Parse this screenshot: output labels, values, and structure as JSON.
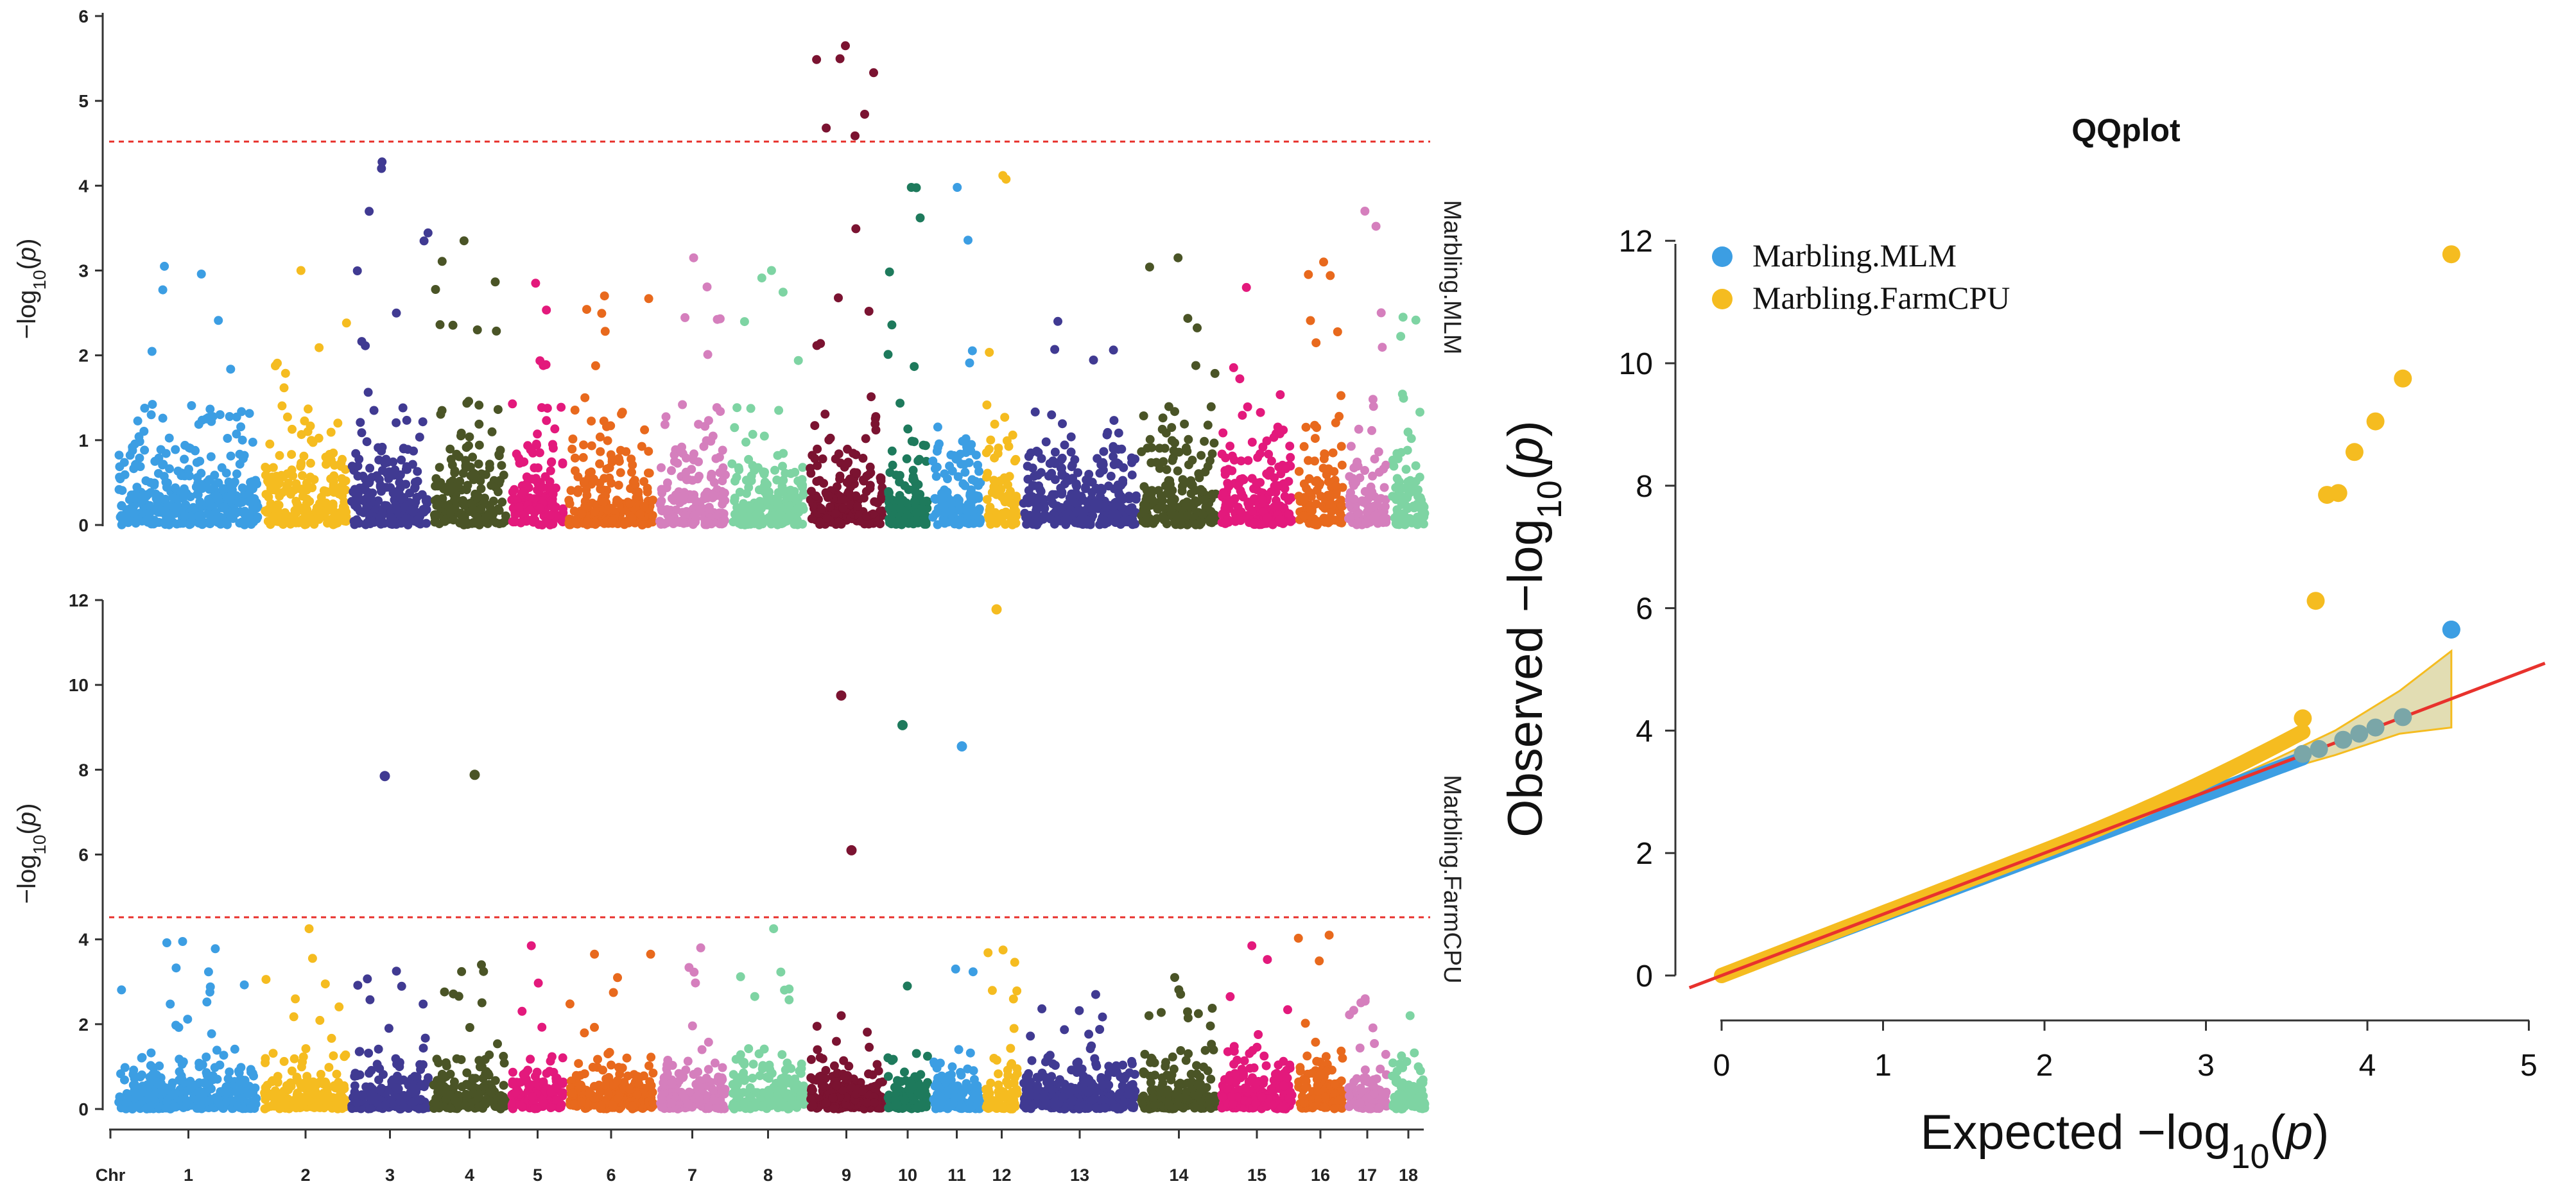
{
  "chart_data": [
    {
      "type": "scatter",
      "subtype": "manhattan",
      "panel_label": "Marbling.MLM",
      "ylabel": "−log10(p)",
      "ylim": [
        0,
        6
      ],
      "yticks": [
        0,
        1,
        2,
        3,
        4,
        5,
        6
      ],
      "threshold": 4.52,
      "threshold_color": "#e8322d",
      "chromosomes": [
        "1",
        "2",
        "3",
        "4",
        "5",
        "6",
        "7",
        "8",
        "9",
        "10",
        "11",
        "12",
        "13",
        "14",
        "15",
        "16",
        "17",
        "18"
      ],
      "colors": [
        "#3c9ee3",
        "#f5bc20",
        "#403a92",
        "#4a5426",
        "#e3197c",
        "#e8691d",
        "#d57fbd",
        "#7ed4a3",
        "#7b1331",
        "#1e7a5c",
        "#3c9ee3",
        "#f5bc20",
        "#403a92",
        "#4a5426",
        "#e3197c",
        "#e8691d",
        "#d57fbd",
        "#7ed4a3"
      ],
      "chr_peaks": [
        3.05,
        3.0,
        4.28,
        3.35,
        2.85,
        2.7,
        3.15,
        3.0,
        5.65,
        3.98,
        3.98,
        4.12,
        2.4,
        3.15,
        2.8,
        3.1,
        3.7,
        2.45
      ]
    },
    {
      "type": "scatter",
      "subtype": "manhattan",
      "panel_label": "Marbling.FarmCPU",
      "xlabel": "Chr",
      "ylabel": "−log10(p)",
      "ylim": [
        0,
        12
      ],
      "yticks": [
        0,
        2,
        4,
        6,
        8,
        10,
        12
      ],
      "threshold": 4.52,
      "threshold_color": "#e8322d",
      "chromosomes": [
        "1",
        "2",
        "3",
        "4",
        "5",
        "6",
        "7",
        "8",
        "9",
        "10",
        "11",
        "12",
        "13",
        "14",
        "15",
        "16",
        "17",
        "18"
      ],
      "colors": [
        "#3c9ee3",
        "#f5bc20",
        "#403a92",
        "#4a5426",
        "#e3197c",
        "#e8691d",
        "#d57fbd",
        "#7ed4a3",
        "#7b1331",
        "#1e7a5c",
        "#3c9ee3",
        "#f5bc20",
        "#403a92",
        "#4a5426",
        "#e3197c",
        "#e8691d",
        "#d57fbd",
        "#7ed4a3"
      ],
      "chr_peaks": [
        3.95,
        4.25,
        3.25,
        3.4,
        3.85,
        3.65,
        3.8,
        4.25,
        2.2,
        2.9,
        3.3,
        3.75,
        2.7,
        3.1,
        3.85,
        4.1,
        2.6,
        2.2
      ],
      "significant": [
        {
          "chr": "3",
          "value": 7.85
        },
        {
          "chr": "4",
          "value": 7.88
        },
        {
          "chr": "9",
          "value": 9.75
        },
        {
          "chr": "9",
          "value": 6.1
        },
        {
          "chr": "10",
          "value": 9.05
        },
        {
          "chr": "11",
          "value": 8.55
        },
        {
          "chr": "12",
          "value": 11.78
        }
      ]
    },
    {
      "type": "scatter",
      "subtype": "qq",
      "title": "QQplot",
      "xlabel": "Expected −log10(p)",
      "ylabel": "Observed −log10(p)",
      "xlim": [
        0,
        5
      ],
      "ylim": [
        0,
        12
      ],
      "xticks": [
        0,
        1,
        2,
        3,
        4,
        5
      ],
      "yticks": [
        0,
        2,
        4,
        6,
        8,
        10,
        12
      ],
      "reference_line_color": "#e8322d",
      "confidence_band_color": "#d8d29a",
      "legend_position": "top-left",
      "series": [
        {
          "name": "Marbling.MLM",
          "color": "#3c9ee3",
          "tail_points": [
            [
              3.6,
              3.62
            ],
            [
              3.7,
              3.7
            ],
            [
              3.85,
              3.85
            ],
            [
              3.95,
              3.95
            ],
            [
              4.05,
              4.05
            ],
            [
              4.22,
              4.22
            ],
            [
              4.52,
              5.65
            ]
          ]
        },
        {
          "name": "Marbling.FarmCPU",
          "color": "#f5bc20",
          "tail_points": [
            [
              3.6,
              4.2
            ],
            [
              3.68,
              6.12
            ],
            [
              3.75,
              7.85
            ],
            [
              3.82,
              7.88
            ],
            [
              3.92,
              8.55
            ],
            [
              4.05,
              9.05
            ],
            [
              4.22,
              9.75
            ],
            [
              4.52,
              11.78
            ]
          ]
        }
      ]
    }
  ],
  "labels": {
    "qq_title": "QQplot",
    "chr_label": "Chr",
    "legend_mlm": "Marbling.MLM",
    "legend_farmcpu": "Marbling.FarmCPU",
    "panel_mlm": "Marbling.MLM",
    "panel_farmcpu": "Marbling.FarmCPU"
  }
}
